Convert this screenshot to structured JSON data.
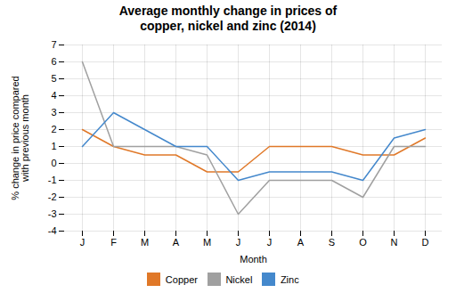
{
  "chart_data": {
    "type": "line",
    "title": "Average monthly change in prices of\ncopper, nickel and zinc (2014)",
    "xlabel": "Month",
    "ylabel": "% change in price compared\nwith previous month",
    "categories": [
      "J",
      "F",
      "M",
      "A",
      "M",
      "J",
      "J",
      "A",
      "S",
      "O",
      "N",
      "D"
    ],
    "series": [
      {
        "name": "Copper",
        "color": "#e07828",
        "values": [
          2.0,
          1.0,
          0.5,
          0.5,
          -0.5,
          -0.5,
          1.0,
          1.0,
          1.0,
          0.5,
          0.5,
          1.5
        ]
      },
      {
        "name": "Nickel",
        "color": "#a0a0a0",
        "values": [
          6.0,
          1.0,
          1.0,
          1.0,
          0.5,
          -3.0,
          -1.0,
          -1.0,
          -1.0,
          -2.0,
          1.0,
          1.0
        ]
      },
      {
        "name": "Zinc",
        "color": "#4488cc",
        "values": [
          1.0,
          3.0,
          2.0,
          1.0,
          1.0,
          -1.0,
          -0.5,
          -0.5,
          -0.5,
          -1.0,
          1.5,
          2.0
        ]
      }
    ],
    "ylim": [
      -4,
      7
    ],
    "yticks": [
      -4,
      -3,
      -2,
      -1,
      0,
      1,
      2,
      3,
      4,
      5,
      6,
      7
    ],
    "grid": true,
    "legend": "bottom"
  }
}
